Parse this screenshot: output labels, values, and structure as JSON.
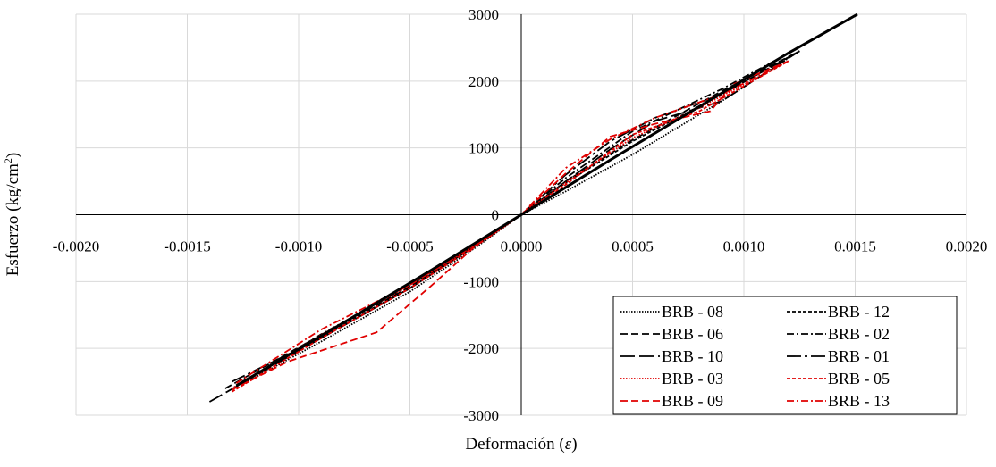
{
  "chart_data": {
    "type": "line",
    "title": "",
    "xlabel": "Deformación",
    "xlabel_symbol": "ε",
    "ylabel": "Esfuerzo (kg/cm",
    "ylabel_sup": "2",
    "ylabel_end": ")",
    "xlim": [
      -0.002,
      0.002
    ],
    "ylim": [
      -3000,
      3000
    ],
    "x_ticks": [
      "-0.0020",
      "-0.0015",
      "-0.0010",
      "-0.0005",
      "0.0000",
      "0.0005",
      "0.0010",
      "0.0015",
      "0.0020"
    ],
    "y_ticks": [
      "3000",
      "2000",
      "1000",
      "0",
      "-1000",
      "-2000",
      "-3000"
    ],
    "grid": true,
    "legend_position": "bottom-right",
    "series": [
      {
        "name": "BRB - 08",
        "color": "#000000",
        "dash": "dotted",
        "x": [
          -0.00126,
          -0.0009,
          -0.0005,
          -0.0002,
          0.0,
          0.0002,
          0.0005,
          0.0009,
          0.00125
        ],
        "y": [
          -2550,
          -1900,
          -1150,
          -480,
          0,
          350,
          900,
          1700,
          2450
        ]
      },
      {
        "name": "BRB - 12",
        "color": "#000000",
        "dash": "short-dash",
        "x": [
          -0.00128,
          -0.0009,
          -0.0005,
          -0.0002,
          0.0,
          0.0002,
          0.0005,
          0.0009,
          0.00125
        ],
        "y": [
          -2550,
          -1820,
          -1100,
          -450,
          0,
          480,
          1100,
          1800,
          2450
        ]
      },
      {
        "name": "BRB - 06",
        "color": "#000000",
        "dash": "dash",
        "x": [
          -0.00133,
          -0.0009,
          -0.0005,
          -0.0002,
          0.0,
          0.0002,
          0.0005,
          0.0009,
          0.00125
        ],
        "y": [
          -2600,
          -1800,
          -1080,
          -440,
          0,
          500,
          1120,
          1850,
          2450
        ]
      },
      {
        "name": "BRB - 02",
        "color": "#000000",
        "dash": "dash-dot",
        "x": [
          -0.00125,
          -0.0009,
          -0.0005,
          -0.0002,
          0.0,
          0.0002,
          0.0005,
          0.0009,
          0.00122
        ],
        "y": [
          -2500,
          -1790,
          -1060,
          -430,
          0,
          550,
          1250,
          1880,
          2450
        ]
      },
      {
        "name": "BRB - 10",
        "color": "#000000",
        "dash": "long-dash",
        "x": [
          -0.0014,
          -0.0009,
          -0.0005,
          -0.0002,
          0.0,
          0.0002,
          0.0004,
          0.0006,
          0.0009,
          0.00125
        ],
        "y": [
          -2800,
          -1850,
          -1100,
          -450,
          0,
          500,
          980,
          1400,
          1700,
          2450
        ]
      },
      {
        "name": "BRB - 01",
        "color": "#000000",
        "dash": "long-dash-dot",
        "x": [
          -0.0013,
          -0.0009,
          -0.0005,
          -0.0002,
          0.0,
          0.0002,
          0.0004,
          0.0006,
          0.0009,
          0.00125
        ],
        "y": [
          -2500,
          -1850,
          -1100,
          -450,
          0,
          600,
          1100,
          1450,
          1800,
          2450
        ]
      },
      {
        "name": "BRB - 03",
        "color": "#e00000",
        "dash": "dotted",
        "x": [
          -0.0013,
          -0.0009,
          -0.0005,
          -0.0002,
          0.0,
          0.0002,
          0.0005,
          0.0008,
          0.0012
        ],
        "y": [
          -2600,
          -1800,
          -1050,
          -440,
          0,
          480,
          1150,
          1600,
          2300
        ]
      },
      {
        "name": "BRB - 05",
        "color": "#e00000",
        "dash": "short-dash",
        "x": [
          -0.0013,
          -0.0009,
          -0.0005,
          -0.0002,
          0.0,
          0.0002,
          0.0005,
          0.0008,
          0.0012
        ],
        "y": [
          -2650,
          -1850,
          -1100,
          -460,
          0,
          450,
          1200,
          1550,
          2300
        ]
      },
      {
        "name": "BRB - 09",
        "color": "#e00000",
        "dash": "dash",
        "x": [
          -0.0013,
          -0.00105,
          -0.00065,
          -0.0004,
          -0.0002,
          0.0,
          0.0002,
          0.0004,
          0.0006,
          0.00085,
          0.00095,
          0.0012
        ],
        "y": [
          -2620,
          -2200,
          -1760,
          -1050,
          -450,
          0,
          620,
          1170,
          1360,
          1550,
          1950,
          2300
        ]
      },
      {
        "name": "BRB - 13",
        "color": "#e00000",
        "dash": "dash-dot",
        "x": [
          -0.00128,
          -0.0009,
          -0.0005,
          -0.0002,
          0.0,
          0.0002,
          0.0004,
          0.0006,
          0.0009,
          0.0012
        ],
        "y": [
          -2520,
          -1720,
          -1050,
          -440,
          0,
          700,
          1130,
          1450,
          1800,
          2300
        ]
      },
      {
        "name": "",
        "color": "#000000",
        "dash": "solid",
        "x": [
          -0.00128,
          -0.0008,
          -0.0004,
          0.0,
          0.0004,
          0.0008,
          0.0012,
          0.00151
        ],
        "y": [
          -2560,
          -1620,
          -820,
          0,
          820,
          1620,
          2420,
          3000
        ]
      }
    ]
  }
}
